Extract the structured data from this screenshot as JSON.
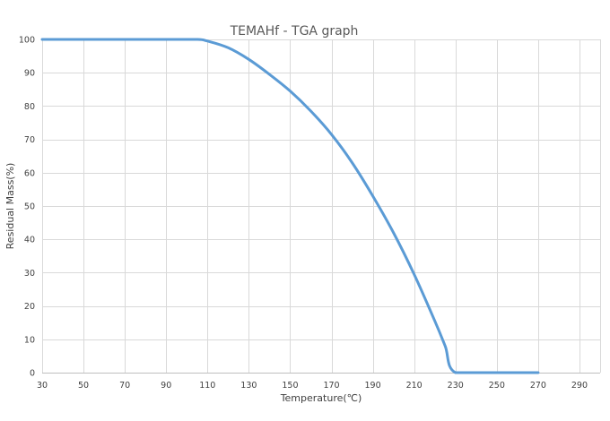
{
  "chart_data": {
    "type": "line",
    "title": "TEMAHf - TGA graph",
    "xlabel": "Temperature(℃)",
    "ylabel": "Residual Mass(%)",
    "xlim": [
      30,
      300
    ],
    "ylim": [
      0,
      100
    ],
    "x_ticks": [
      30,
      50,
      70,
      90,
      110,
      130,
      150,
      170,
      190,
      210,
      230,
      250,
      270,
      290
    ],
    "y_ticks": [
      0,
      10,
      20,
      30,
      40,
      50,
      60,
      70,
      80,
      90,
      100
    ],
    "grid": true,
    "legend": "none",
    "series": [
      {
        "color": "#5b9bd5",
        "x": [
          30,
          50,
          70,
          90,
          105,
          110,
          120,
          130,
          140,
          150,
          160,
          170,
          180,
          190,
          200,
          210,
          220,
          225,
          230,
          250,
          270
        ],
        "y": [
          100,
          100,
          100,
          100,
          100,
          99.5,
          97.5,
          94,
          89.5,
          84.5,
          78.5,
          71.5,
          63,
          53,
          42,
          29.5,
          15.5,
          8,
          0,
          0,
          0
        ]
      }
    ]
  }
}
